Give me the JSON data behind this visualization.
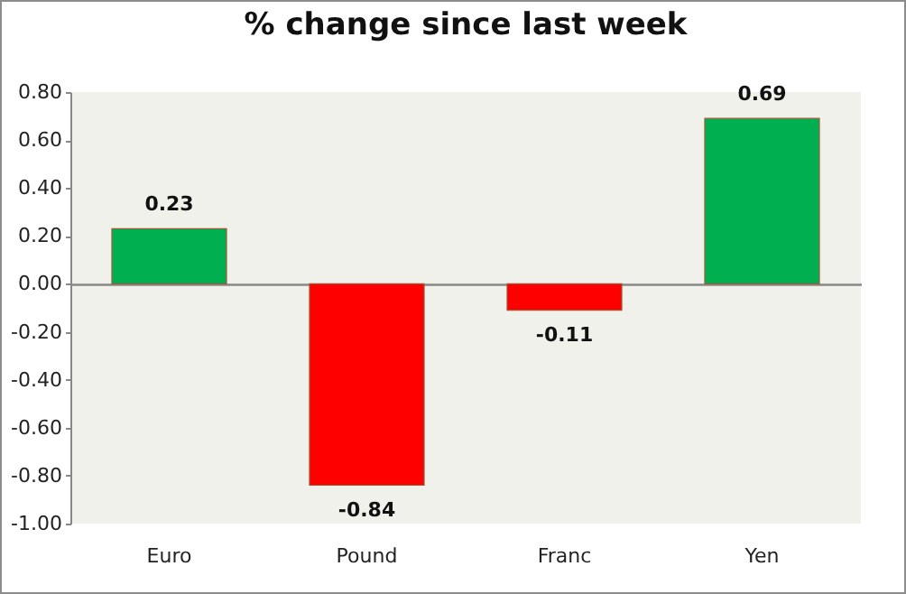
{
  "chart_data": {
    "type": "bar",
    "title": "% change since last week",
    "categories": [
      "Euro",
      "Pound",
      "Franc",
      "Yen"
    ],
    "values": [
      0.23,
      -0.84,
      -0.11,
      0.69
    ],
    "colors": [
      "#00b050",
      "#ff0000",
      "#ff0000",
      "#00b050"
    ],
    "ylim": [
      -1.0,
      0.8
    ],
    "yticks": [
      {
        "value": -1.0,
        "label": "-1.00"
      },
      {
        "value": -0.8,
        "label": "-0.80"
      },
      {
        "value": -0.6,
        "label": "-0.60"
      },
      {
        "value": -0.4,
        "label": "-0.40"
      },
      {
        "value": -0.2,
        "label": "-0.20"
      },
      {
        "value": 0,
        "label": "0.00"
      },
      {
        "value": 0.2,
        "label": "0.20"
      },
      {
        "value": 0.4,
        "label": "0.40"
      },
      {
        "value": 0.6,
        "label": "0.60"
      },
      {
        "value": 0.8,
        "label": "0.80"
      }
    ],
    "data_labels": true
  }
}
